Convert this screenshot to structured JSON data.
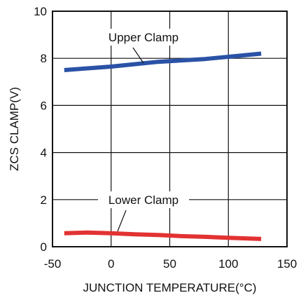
{
  "chart_data": {
    "type": "line",
    "title": "",
    "xlabel": "JUNCTION TEMPERATURE(°C)",
    "ylabel": "ZCS CLAMP(V)",
    "xlim": [
      -50,
      150
    ],
    "ylim": [
      0,
      10
    ],
    "xticks": [
      -50,
      0,
      50,
      100,
      150
    ],
    "yticks": [
      0,
      2,
      4,
      6,
      8,
      10
    ],
    "xtick_labels": [
      "-50",
      "0",
      "50",
      "100",
      "150"
    ],
    "ytick_labels": [
      "0",
      "2",
      "4",
      "6",
      "8",
      "10"
    ],
    "grid": true,
    "legend": "none",
    "series": [
      {
        "name": "Upper Clamp",
        "color": "#2a52a6",
        "x": [
          -40,
          0,
          40,
          80,
          128
        ],
        "y": [
          7.5,
          7.65,
          7.85,
          7.97,
          8.2
        ]
      },
      {
        "name": "Lower Clamp",
        "color": "#e23232",
        "x": [
          -40,
          -20,
          0,
          20,
          40,
          60,
          80,
          100,
          128
        ],
        "y": [
          0.57,
          0.6,
          0.57,
          0.53,
          0.5,
          0.45,
          0.42,
          0.38,
          0.33
        ]
      }
    ]
  }
}
